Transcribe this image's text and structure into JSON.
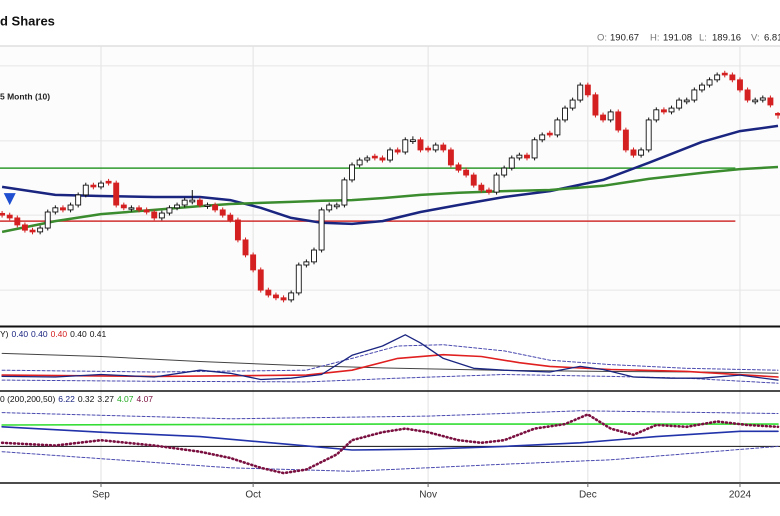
{
  "chart_data": {
    "type": "candlestick",
    "title": "d Shares",
    "ma_label": "5 Month (10)",
    "header_labels": [
      "O:",
      "H:",
      "L:",
      "V:"
    ],
    "volume": 6.81,
    "categories": [
      null,
      null,
      null,
      null,
      null,
      null,
      null,
      null,
      null,
      null,
      null,
      null,
      null,
      "Sep",
      null,
      null,
      null,
      null,
      null,
      null,
      null,
      null,
      null,
      null,
      null,
      null,
      null,
      null,
      null,
      null,
      null,
      null,
      null,
      "Oct",
      null,
      null,
      null,
      null,
      null,
      null,
      null,
      null,
      null,
      null,
      null,
      null,
      null,
      null,
      null,
      null,
      null,
      null,
      null,
      null,
      null,
      null,
      "Nov",
      null,
      null,
      null,
      null,
      null,
      null,
      null,
      null,
      null,
      null,
      null,
      null,
      null,
      null,
      null,
      null,
      null,
      null,
      null,
      null,
      "Dec",
      null,
      null,
      null,
      null,
      null,
      null,
      null,
      null,
      null,
      null,
      null,
      null,
      null,
      null,
      null,
      null,
      null,
      null,
      null,
      "2024",
      null,
      null,
      null,
      null,
      null
    ],
    "ohlc": [
      [
        162.0,
        162.7,
        160.8,
        161.5
      ],
      [
        161.5,
        162.2,
        160.0,
        160.7
      ],
      [
        160.7,
        161.4,
        158.0,
        158.7
      ],
      [
        158.7,
        159.4,
        156.5,
        157.2
      ],
      [
        157.2,
        157.9,
        156.0,
        156.7
      ],
      [
        156.7,
        158.5,
        156.0,
        157.8
      ],
      [
        157.8,
        163.1,
        157.1,
        162.4
      ],
      [
        162.4,
        164.3,
        161.7,
        163.6
      ],
      [
        163.6,
        164.3,
        162.3,
        163.0
      ],
      [
        163.0,
        165.1,
        162.3,
        164.4
      ],
      [
        164.4,
        168.0,
        163.7,
        167.3
      ],
      [
        167.3,
        170.8,
        166.6,
        170.1
      ],
      [
        170.1,
        170.8,
        168.9,
        169.6
      ],
      [
        169.6,
        171.4,
        168.9,
        170.7
      ],
      [
        171.2,
        171.9,
        170.0,
        170.7
      ],
      [
        170.7,
        171.4,
        163.7,
        164.4
      ],
      [
        164.4,
        165.1,
        162.9,
        163.6
      ],
      [
        163.2,
        164.3,
        162.5,
        163.6
      ],
      [
        163.6,
        164.3,
        162.3,
        163.0
      ],
      [
        163.0,
        163.7,
        161.7,
        162.4
      ],
      [
        162.4,
        163.1,
        160.0,
        160.7
      ],
      [
        160.7,
        162.8,
        160.0,
        162.1
      ],
      [
        162.1,
        164.3,
        161.4,
        163.6
      ],
      [
        163.6,
        165.1,
        162.9,
        164.4
      ],
      [
        164.4,
        166.5,
        163.7,
        165.8
      ],
      [
        165.3,
        168.7,
        164.6,
        165.8
      ],
      [
        165.8,
        166.5,
        163.7,
        164.4
      ],
      [
        164.0,
        165.1,
        163.3,
        164.4
      ],
      [
        164.4,
        165.1,
        162.3,
        163.0
      ],
      [
        163.0,
        163.7,
        160.8,
        161.5
      ],
      [
        161.5,
        162.2,
        159.4,
        160.1
      ],
      [
        160.1,
        160.8,
        153.7,
        154.4
      ],
      [
        154.4,
        155.1,
        149.4,
        150.1
      ],
      [
        150.1,
        150.8,
        145.1,
        145.8
      ],
      [
        145.8,
        146.5,
        139.3,
        140.0
      ],
      [
        140.0,
        140.7,
        137.9,
        138.6
      ],
      [
        138.6,
        139.3,
        137.1,
        137.8
      ],
      [
        137.8,
        138.5,
        136.5,
        137.2
      ],
      [
        137.2,
        139.9,
        136.5,
        139.2
      ],
      [
        139.2,
        147.9,
        138.5,
        147.2
      ],
      [
        147.2,
        148.8,
        146.5,
        148.1
      ],
      [
        148.1,
        152.2,
        147.4,
        151.5
      ],
      [
        151.5,
        163.7,
        150.8,
        163.0
      ],
      [
        163.0,
        165.1,
        162.3,
        164.4
      ],
      [
        163.9,
        165.1,
        163.2,
        164.4
      ],
      [
        164.4,
        172.3,
        163.7,
        171.6
      ],
      [
        171.6,
        176.6,
        170.9,
        175.9
      ],
      [
        175.9,
        178.0,
        175.2,
        177.3
      ],
      [
        177.3,
        178.6,
        176.6,
        177.9
      ],
      [
        178.4,
        179.1,
        177.2,
        177.9
      ],
      [
        177.9,
        178.6,
        176.6,
        177.3
      ],
      [
        177.3,
        180.9,
        176.6,
        180.2
      ],
      [
        180.2,
        180.9,
        178.9,
        179.6
      ],
      [
        179.6,
        183.8,
        178.9,
        183.1
      ],
      [
        182.6,
        184.1,
        181.9,
        183.1
      ],
      [
        183.1,
        183.8,
        179.5,
        180.2
      ],
      [
        180.7,
        181.4,
        179.5,
        180.2
      ],
      [
        180.2,
        182.3,
        179.5,
        181.6
      ],
      [
        181.6,
        182.3,
        179.5,
        180.2
      ],
      [
        180.2,
        180.9,
        175.2,
        175.9
      ],
      [
        175.9,
        176.6,
        173.7,
        174.4
      ],
      [
        174.4,
        175.1,
        172.3,
        173.0
      ],
      [
        173.0,
        173.7,
        169.4,
        170.1
      ],
      [
        170.1,
        170.8,
        168.0,
        168.7
      ],
      [
        168.7,
        169.4,
        167.4,
        168.1
      ],
      [
        168.1,
        173.7,
        167.4,
        173.0
      ],
      [
        173.0,
        175.7,
        172.3,
        175.0
      ],
      [
        175.0,
        178.6,
        174.3,
        177.9
      ],
      [
        177.9,
        179.4,
        177.2,
        178.7
      ],
      [
        178.7,
        179.4,
        177.2,
        177.9
      ],
      [
        177.9,
        183.8,
        177.2,
        183.1
      ],
      [
        183.1,
        185.2,
        182.4,
        184.5
      ],
      [
        185.0,
        185.7,
        183.8,
        184.5
      ],
      [
        184.5,
        189.5,
        183.8,
        188.8
      ],
      [
        188.8,
        192.9,
        188.1,
        192.2
      ],
      [
        192.2,
        195.2,
        191.5,
        194.5
      ],
      [
        194.5,
        199.5,
        193.8,
        198.8
      ],
      [
        198.8,
        199.5,
        195.3,
        196.0
      ],
      [
        196.0,
        196.7,
        189.5,
        190.2
      ],
      [
        190.2,
        190.9,
        188.1,
        188.8
      ],
      [
        188.8,
        191.8,
        188.1,
        191.1
      ],
      [
        191.1,
        191.8,
        185.2,
        185.9
      ],
      [
        185.9,
        186.6,
        179.5,
        180.2
      ],
      [
        180.2,
        180.9,
        178.0,
        178.7
      ],
      [
        178.7,
        180.9,
        178.0,
        180.2
      ],
      [
        180.2,
        189.5,
        179.5,
        188.8
      ],
      [
        188.8,
        192.4,
        188.1,
        191.7
      ],
      [
        191.7,
        192.4,
        190.4,
        191.1
      ],
      [
        191.1,
        192.9,
        190.4,
        192.2
      ],
      [
        192.2,
        195.2,
        191.5,
        194.5
      ],
      [
        194.0,
        195.2,
        193.3,
        194.5
      ],
      [
        194.5,
        198.1,
        193.8,
        197.4
      ],
      [
        197.4,
        199.5,
        196.7,
        198.8
      ],
      [
        198.8,
        201.0,
        198.1,
        200.3
      ],
      [
        200.3,
        202.4,
        199.6,
        201.7
      ],
      [
        202.2,
        202.9,
        201.0,
        201.7
      ],
      [
        201.7,
        202.4,
        199.6,
        200.3
      ],
      [
        200.3,
        201.0,
        196.7,
        197.4
      ],
      [
        197.4,
        198.1,
        193.8,
        194.5
      ],
      [
        194.0,
        195.2,
        193.3,
        194.5
      ],
      [
        194.5,
        195.8,
        193.8,
        195.1
      ],
      [
        195.1,
        195.8,
        192.4,
        193.1
      ],
      [
        190.67,
        191.08,
        189.16,
        190.2
      ]
    ],
    "up_color": "#ffffff",
    "up_stroke": "#111111",
    "down_color": "#d42020",
    "ylim": [
      130,
      210
    ],
    "ygrid": [
      204.3,
      182.8,
      161.5,
      140.0
    ],
    "overlays": [
      {
        "color": "#1a2580",
        "x": [
          0,
          7,
          13,
          20,
          26,
          30,
          34,
          38,
          42,
          46,
          50,
          55,
          60,
          66,
          72,
          79,
          85,
          92,
          97,
          102
        ],
        "values": [
          169.6,
          167.3,
          167.0,
          166.7,
          166.7,
          165.8,
          163.6,
          160.7,
          159.3,
          159.0,
          159.8,
          162.4,
          164.4,
          166.7,
          168.4,
          171.6,
          176.5,
          182.5,
          185.6,
          187.1
        ]
      },
      {
        "color": "#3b8c2e",
        "x": [
          0,
          7,
          13,
          20,
          26,
          30,
          34,
          38,
          42,
          46,
          50,
          55,
          60,
          66,
          72,
          79,
          85,
          92,
          97,
          102
        ],
        "values": [
          156.7,
          159.8,
          161.8,
          163.0,
          164.1,
          164.7,
          165.0,
          165.3,
          165.6,
          165.8,
          166.4,
          167.3,
          167.9,
          168.4,
          168.7,
          169.9,
          171.9,
          173.6,
          174.7,
          175.3
        ]
      }
    ],
    "levels": [
      {
        "value": 175.0,
        "color": "#2e9a2e"
      },
      {
        "value": 159.8,
        "color": "#d03030"
      }
    ],
    "markers": [
      {
        "x": 1,
        "value": 165.8,
        "color": "#1f4fd0"
      }
    ],
    "panels": [
      {
        "label": [
          {
            "text": "Y)",
            "color": "#111111"
          },
          {
            "text": "0.40",
            "color": "#1a2580"
          },
          {
            "text": "0.40",
            "color": "#1a2580"
          },
          {
            "text": "0.40",
            "color": "#d42020"
          },
          {
            "text": "0.40",
            "color": "#111111"
          },
          {
            "text": "0.41",
            "color": "#111111"
          }
        ],
        "ylim": [
          0,
          100
        ],
        "hlines": [],
        "series": [
          {
            "color": "#444444",
            "width": 1,
            "dash": "none",
            "x": [
              0,
              13,
              26,
              38,
              52,
              65,
              79,
              92,
              102
            ],
            "values": [
              59,
              54,
              46,
              40,
              35,
              32,
              30,
              29,
              27
            ]
          },
          {
            "color": "#4a4ab0",
            "width": 1,
            "dash": "3,2",
            "x": [
              0,
              20,
              40,
              46,
              52,
              58,
              66,
              72,
              80,
              90,
              102
            ],
            "values": [
              32,
              29,
              32,
              51,
              71,
              73,
              63,
              48,
              41,
              35,
              32
            ]
          },
          {
            "color": "#4a4ab0",
            "width": 1,
            "dash": "3,2",
            "x": [
              0,
              20,
              40,
              52,
              66,
              80,
              90,
              102
            ],
            "values": [
              16,
              14,
              13,
              19,
              25,
              22,
              19,
              11
            ]
          },
          {
            "color": "#e02020",
            "width": 1.6,
            "dash": "none",
            "x": [
              0,
              20,
              40,
              46,
              52,
              58,
              63,
              68,
              72,
              80,
              90,
              102
            ],
            "values": [
              24,
              22,
              24,
              32,
              51,
              57,
              54,
              44,
              38,
              33,
              30,
              21
            ]
          },
          {
            "color": "#1a2580",
            "width": 1.3,
            "dash": "none",
            "x": [
              0,
              7,
              13,
              20,
              26,
              30,
              34,
              38,
              42,
              46,
              50,
              53,
              55,
              58,
              62,
              66,
              72,
              76,
              79,
              83,
              88,
              92,
              97,
              102
            ],
            "values": [
              22,
              21,
              25,
              21,
              32,
              27,
              17,
              19,
              25,
              56,
              71,
              89,
              76,
              51,
              35,
              32,
              29,
              38,
              33,
              21,
              19,
              19,
              24,
              16
            ]
          }
        ]
      },
      {
        "label": [
          {
            "text": "0 (200,200,50)",
            "color": "#111111"
          },
          {
            "text": "6.22",
            "color": "#1a2580"
          },
          {
            "text": "0.32",
            "color": "#111111"
          },
          {
            "text": "3.27",
            "color": "#111111"
          },
          {
            "text": "4.07",
            "color": "#22aa22"
          },
          {
            "text": "4.07",
            "color": "#7a1040"
          }
        ],
        "ylim": [
          0,
          100
        ],
        "hlines": [
          40
        ],
        "series": [
          {
            "color": "#4a4ab0",
            "width": 1,
            "dash": "3,2",
            "x": [
              0,
              30,
              56,
              76,
              102
            ],
            "values": [
              78,
              71,
              74,
              80,
              77
            ]
          },
          {
            "color": "#4a4ab0",
            "width": 1,
            "dash": "3,2",
            "x": [
              0,
              30,
              46,
              66,
              80,
              102
            ],
            "values": [
              34,
              16,
              12,
              20,
              25,
              40
            ]
          },
          {
            "color": "#33dd33",
            "width": 1.6,
            "dash": "none",
            "x": [
              0,
              50,
              102
            ],
            "values": [
              64,
              65,
              65
            ]
          },
          {
            "color": "#2233aa",
            "width": 1.6,
            "dash": "none",
            "x": [
              0,
              13,
              26,
              38,
              46,
              56,
              66,
              76,
              86,
              97,
              102
            ],
            "values": [
              62,
              56,
              51,
              42,
              36,
              37,
              40,
              44,
              51,
              57,
              57
            ]
          },
          {
            "color": "#7a1040",
            "width": 2.6,
            "dash": "1,3",
            "x": [
              0,
              7,
              13,
              20,
              26,
              30,
              34,
              37,
              40,
              44,
              46,
              50,
              53,
              56,
              60,
              63,
              66,
              70,
              74,
              77,
              80,
              83,
              86,
              90,
              94,
              98,
              102
            ],
            "values": [
              44,
              41,
              47,
              41,
              34,
              27,
              16,
              10,
              14,
              31,
              47,
              56,
              60,
              56,
              47,
              44,
              47,
              60,
              65,
              76,
              60,
              53,
              64,
              62,
              68,
              64,
              62
            ]
          }
        ]
      }
    ]
  }
}
